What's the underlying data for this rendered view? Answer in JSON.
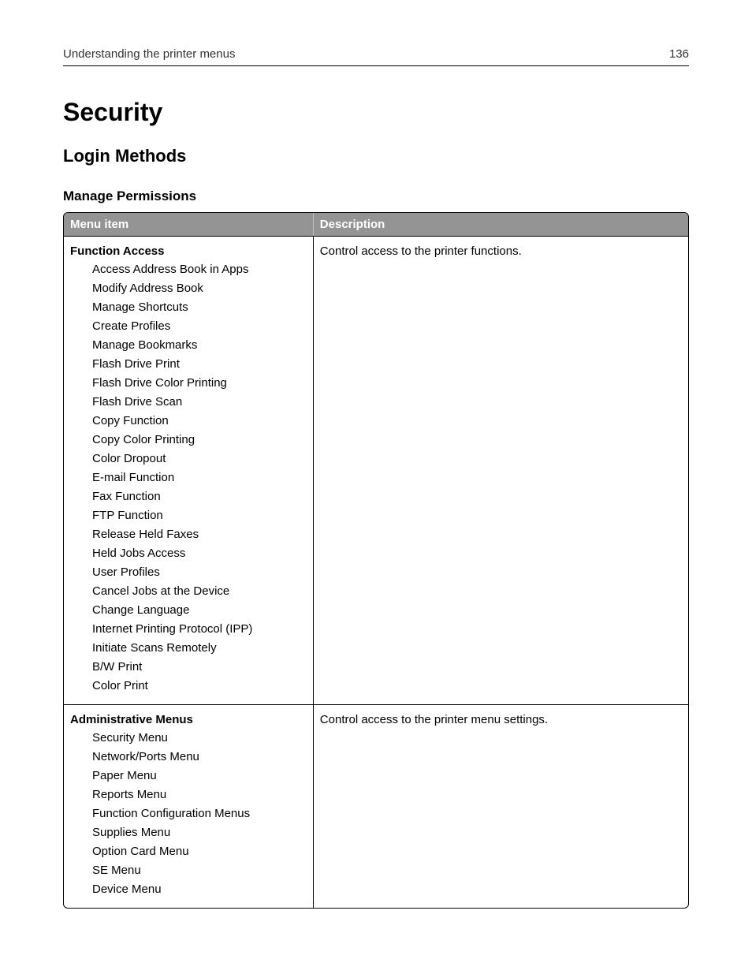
{
  "header": {
    "chapter": "Understanding the printer menus",
    "page_number": "136"
  },
  "titles": {
    "h1": "Security",
    "h2": "Login Methods",
    "h3": "Manage Permissions"
  },
  "table": {
    "columns": [
      "Menu item",
      "Description"
    ],
    "header_bg": "#949494",
    "header_fg": "#ffffff",
    "border_color": "#000000",
    "rows": [
      {
        "group_title": "Function Access",
        "description": "Control access to the printer functions.",
        "items": [
          "Access Address Book in Apps",
          "Modify Address Book",
          "Manage Shortcuts",
          "Create Profiles",
          "Manage Bookmarks",
          "Flash Drive Print",
          "Flash Drive Color Printing",
          "Flash Drive Scan",
          "Copy Function",
          "Copy Color Printing",
          "Color Dropout",
          "E-mail Function",
          "Fax Function",
          "FTP Function",
          "Release Held Faxes",
          "Held Jobs Access",
          "User Profiles",
          "Cancel Jobs at the Device",
          "Change Language",
          "Internet Printing Protocol (IPP)",
          "Initiate Scans Remotely",
          "B/W Print",
          "Color Print"
        ]
      },
      {
        "group_title": "Administrative Menus",
        "description": "Control access to the printer menu settings.",
        "items": [
          "Security Menu",
          "Network/Ports Menu",
          "Paper Menu",
          "Reports Menu",
          "Function Configuration Menus",
          "Supplies Menu",
          "Option Card Menu",
          "SE Menu",
          "Device Menu"
        ]
      }
    ]
  }
}
